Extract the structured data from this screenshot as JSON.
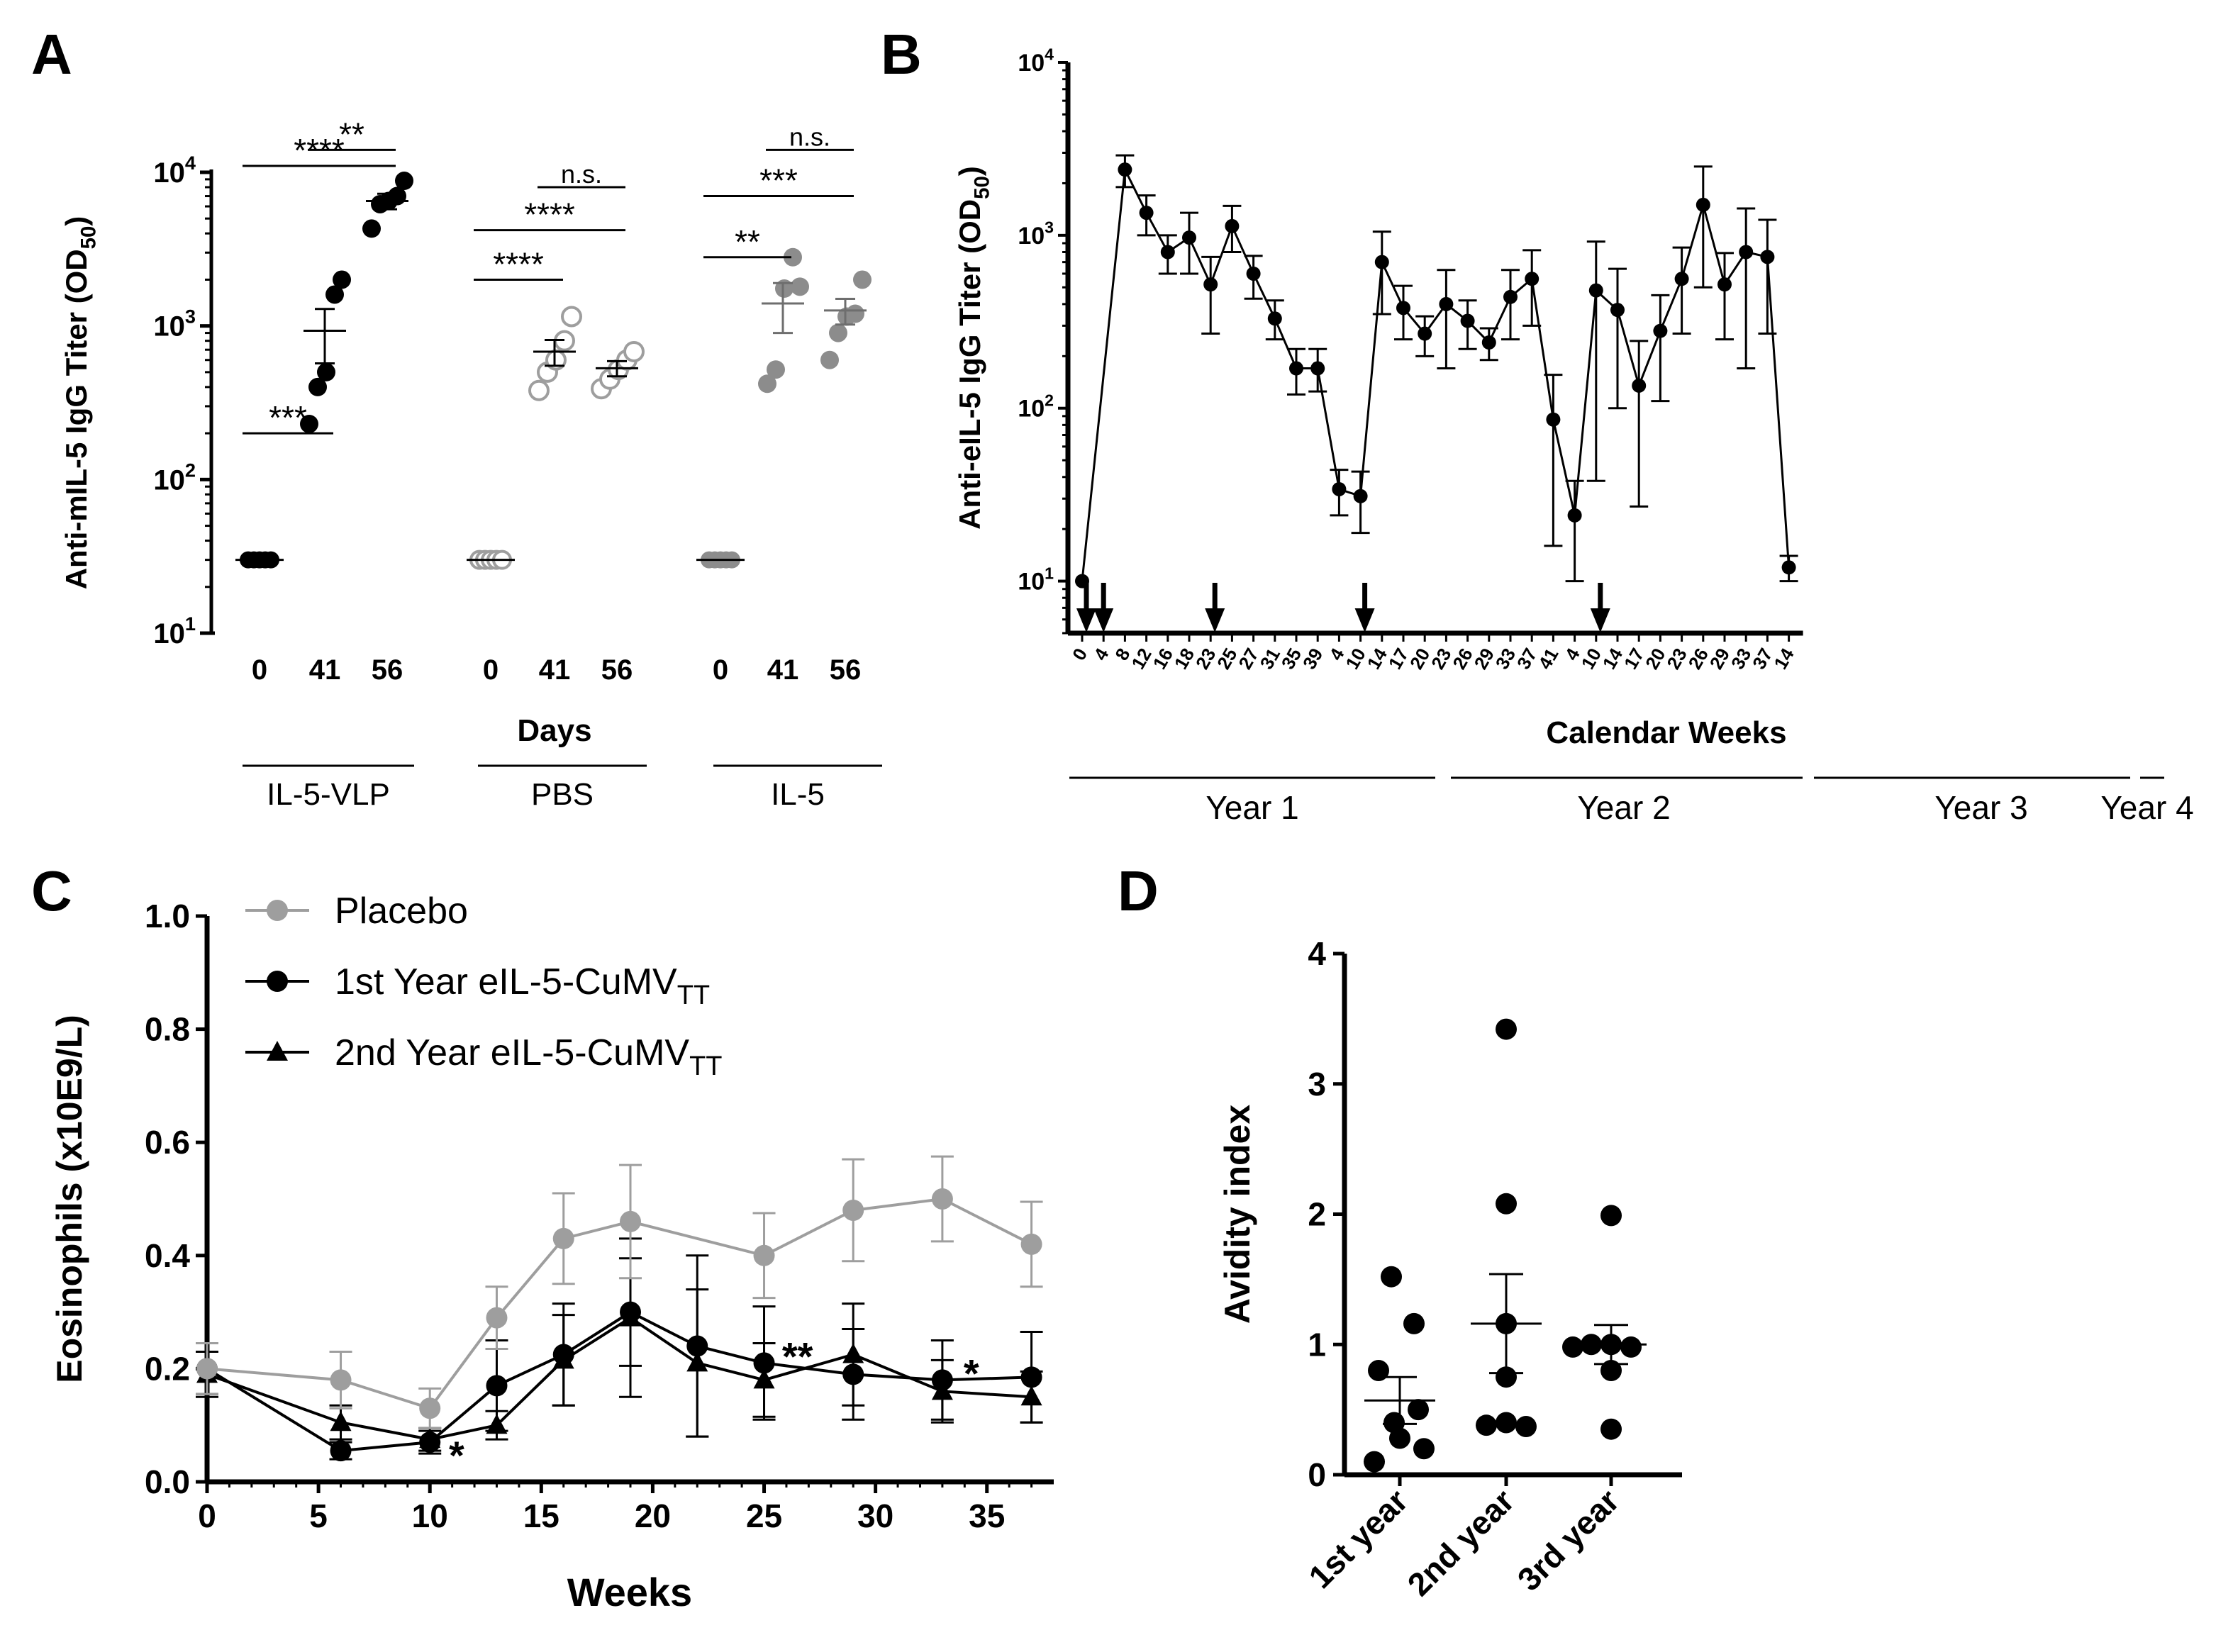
{
  "figure": {
    "panel_letters": [
      "A",
      "B",
      "C",
      "D"
    ]
  },
  "chart_data": [
    {
      "panel": "A",
      "type": "scatter",
      "y_scale": "log",
      "ylim": [
        10,
        10000
      ],
      "ylabel": "Anti-mIL-5 IgG Titer (OD50)",
      "ylabel_main": "Anti-mIL-5 IgG Titer (OD",
      "ylabel_sub": "50",
      "ylabel_end": ")",
      "yticks": [
        {
          "value": 10,
          "base": "10",
          "exp": "1"
        },
        {
          "value": 100,
          "base": "10",
          "exp": "2"
        },
        {
          "value": 1000,
          "base": "10",
          "exp": "3"
        },
        {
          "value": 10000,
          "base": "10",
          "exp": "4"
        }
      ],
      "xlabel": "Days",
      "groups": [
        {
          "name": "IL-5-VLP",
          "marker": "filled",
          "color": "#000000",
          "days": [
            {
              "day": "0",
              "points": [
                30,
                30,
                30,
                30,
                30
              ],
              "mean": 30,
              "sem": 0
            },
            {
              "day": "41",
              "points": [
                230,
                400,
                500,
                1600,
                2000
              ],
              "mean": 930,
              "sem": 360
            },
            {
              "day": "56",
              "points": [
                4300,
                6200,
                6500,
                7000,
                8800
              ],
              "mean": 6500,
              "sem": 750
            }
          ]
        },
        {
          "name": "PBS",
          "marker": "open",
          "color": "#9e9e9e",
          "days": [
            {
              "day": "0",
              "points": [
                30,
                30,
                30,
                30,
                30
              ],
              "mean": 30,
              "sem": 0
            },
            {
              "day": "41",
              "points": [
                380,
                500,
                600,
                800,
                1150
              ],
              "mean": 680,
              "sem": 130
            },
            {
              "day": "56",
              "points": [
                390,
                450,
                520,
                600,
                680
              ],
              "mean": 530,
              "sem": 60
            }
          ]
        },
        {
          "name": "IL-5",
          "marker": "filled",
          "color": "#8c8c8c",
          "days": [
            {
              "day": "0",
              "points": [
                30,
                30,
                30,
                30,
                30
              ],
              "mean": 30,
              "sem": 0
            },
            {
              "day": "41",
              "points": [
                420,
                520,
                1750,
                2800,
                1800
              ],
              "mean": 1400,
              "sem": 500
            },
            {
              "day": "56",
              "points": [
                600,
                900,
                1150,
                1200,
                2000
              ],
              "mean": 1260,
              "sem": 240
            }
          ]
        }
      ],
      "significance": [
        {
          "group": 0,
          "from": 0,
          "to": 1,
          "label": "***",
          "level": 200
        },
        {
          "group": 0,
          "from": 0,
          "to": 2,
          "label": "****",
          "level": 11000
        },
        {
          "group": 0,
          "from": 1,
          "to": 2,
          "label": "**",
          "level": 14000
        },
        {
          "group": 1,
          "from": 0,
          "to": 1,
          "label": "****",
          "level": 2000
        },
        {
          "group": 1,
          "from": 0,
          "to": 2,
          "label": "****",
          "level": 4200
        },
        {
          "group": 1,
          "from": 1,
          "to": 2,
          "label": "n.s.",
          "level": 8000
        },
        {
          "group": 2,
          "from": 0,
          "to": 1,
          "label": "**",
          "level": 2800
        },
        {
          "group": 2,
          "from": 0,
          "to": 2,
          "label": "***",
          "level": 7000
        },
        {
          "group": 2,
          "from": 1,
          "to": 2,
          "label": "n.s.",
          "level": 14000
        }
      ]
    },
    {
      "panel": "B",
      "type": "line",
      "y_scale": "log",
      "ylim": [
        5,
        10000
      ],
      "ylabel": "Anti-eIL-5 IgG Titer (OD50)",
      "ylabel_main": "Anti-eIL-5 IgG Titer (OD",
      "ylabel_sub": "50",
      "ylabel_end": ")",
      "yticks": [
        {
          "value": 10,
          "base": "10",
          "exp": "1"
        },
        {
          "value": 100,
          "base": "10",
          "exp": "2"
        },
        {
          "value": 1000,
          "base": "10",
          "exp": "3"
        },
        {
          "value": 10000,
          "base": "10",
          "exp": "4"
        }
      ],
      "xlabel": "Calendar Weeks",
      "xticks": [
        "0",
        "4",
        "8",
        "12",
        "16",
        "18",
        "23",
        "25",
        "27",
        "31",
        "35",
        "39",
        "4",
        "10",
        "14",
        "17",
        "20",
        "23",
        "26",
        "29",
        "33",
        "37",
        "41",
        "4",
        "10",
        "14",
        "17",
        "20",
        "23",
        "26",
        "29",
        "33",
        "37",
        "14"
      ],
      "points": [
        {
          "i": 0,
          "y": 10
        },
        {
          "i": 2,
          "y": 2400,
          "lo": 1900,
          "hi": 2900
        },
        {
          "i": 3,
          "y": 1350,
          "lo": 1000,
          "hi": 1700
        },
        {
          "i": 4,
          "y": 800,
          "lo": 600,
          "hi": 1000
        },
        {
          "i": 5,
          "y": 970,
          "lo": 600,
          "hi": 1350
        },
        {
          "i": 6,
          "y": 520,
          "lo": 270,
          "hi": 750
        },
        {
          "i": 7,
          "y": 1130,
          "lo": 800,
          "hi": 1480
        },
        {
          "i": 8,
          "y": 600,
          "lo": 430,
          "hi": 760
        },
        {
          "i": 9,
          "y": 330,
          "lo": 250,
          "hi": 420
        },
        {
          "i": 10,
          "y": 170,
          "lo": 120,
          "hi": 220
        },
        {
          "i": 11,
          "y": 170,
          "lo": 125,
          "hi": 220
        },
        {
          "i": 12,
          "y": 34,
          "lo": 24,
          "hi": 44
        },
        {
          "i": 13,
          "y": 31,
          "lo": 19,
          "hi": 43
        },
        {
          "i": 14,
          "y": 700,
          "lo": 350,
          "hi": 1050
        },
        {
          "i": 15,
          "y": 380,
          "lo": 250,
          "hi": 510
        },
        {
          "i": 16,
          "y": 270,
          "lo": 200,
          "hi": 340
        },
        {
          "i": 17,
          "y": 400,
          "lo": 170,
          "hi": 630
        },
        {
          "i": 18,
          "y": 320,
          "lo": 220,
          "hi": 420
        },
        {
          "i": 19,
          "y": 240,
          "lo": 190,
          "hi": 290
        },
        {
          "i": 20,
          "y": 440,
          "lo": 250,
          "hi": 630
        },
        {
          "i": 21,
          "y": 560,
          "lo": 300,
          "hi": 820
        },
        {
          "i": 22,
          "y": 86,
          "lo": 16,
          "hi": 156
        },
        {
          "i": 23,
          "y": 24,
          "lo": 10,
          "hi": 38
        },
        {
          "i": 24,
          "y": 480,
          "lo": 38,
          "hi": 920
        },
        {
          "i": 25,
          "y": 370,
          "lo": 100,
          "hi": 640
        },
        {
          "i": 26,
          "y": 135,
          "lo": 27,
          "hi": 245
        },
        {
          "i": 27,
          "y": 280,
          "lo": 110,
          "hi": 450
        },
        {
          "i": 28,
          "y": 560,
          "lo": 270,
          "hi": 850
        },
        {
          "i": 29,
          "y": 1500,
          "lo": 500,
          "hi": 2500
        },
        {
          "i": 30,
          "y": 520,
          "lo": 250,
          "hi": 790
        },
        {
          "i": 31,
          "y": 800,
          "lo": 170,
          "hi": 1430
        },
        {
          "i": 32,
          "y": 750,
          "lo": 270,
          "hi": 1230
        },
        {
          "i": 33,
          "y": 12,
          "lo": 10,
          "hi": 14
        }
      ],
      "vaccination_arrows_at_tick_index": [
        0,
        1,
        6,
        13,
        24
      ],
      "year_labels": [
        "Year 1",
        "Year 2",
        "Year 3",
        "Year 4"
      ]
    },
    {
      "panel": "C",
      "type": "line",
      "xlabel": "Weeks",
      "ylabel": "Eosinophils (x10E9/L)",
      "xlim": [
        0,
        38
      ],
      "ylim": [
        0,
        1.0
      ],
      "xticks": [
        0,
        5,
        10,
        15,
        20,
        25,
        30,
        35
      ],
      "yticks": [
        "0.0",
        "0.2",
        "0.4",
        "0.6",
        "0.8",
        "1.0"
      ],
      "series": [
        {
          "name": "Placebo",
          "name_sub": "",
          "marker": "circle",
          "color": "#9e9e9e",
          "x": [
            0,
            6,
            10,
            13,
            16,
            19,
            25,
            29,
            33,
            37
          ],
          "y": [
            0.2,
            0.18,
            0.13,
            0.29,
            0.43,
            0.46,
            0.4,
            0.48,
            0.5,
            0.42
          ],
          "err": [
            0.045,
            0.05,
            0.035,
            0.055,
            0.08,
            0.1,
            0.075,
            0.09,
            0.075,
            0.075
          ]
        },
        {
          "name": "1st Year eIL-5-CuMV",
          "name_sub": "TT",
          "marker": "circle",
          "color": "#000000",
          "x": [
            0,
            6,
            10,
            13,
            16,
            19,
            22,
            25,
            29,
            33,
            37
          ],
          "y": [
            0.2,
            0.055,
            0.07,
            0.17,
            0.225,
            0.3,
            0.24,
            0.21,
            0.19,
            0.18,
            0.185
          ],
          "err": [
            0.045,
            0.015,
            0.02,
            0.08,
            0.09,
            0.095,
            0.16,
            0.1,
            0.08,
            0.07,
            0.08
          ]
        },
        {
          "name": "2nd Year eIL-5-CuMV",
          "name_sub": "TT",
          "marker": "triangle",
          "color": "#000000",
          "x": [
            0,
            6,
            10,
            13,
            16,
            19,
            22,
            25,
            29,
            33,
            37
          ],
          "y": [
            0.19,
            0.105,
            0.075,
            0.1,
            0.215,
            0.29,
            0.21,
            0.18,
            0.225,
            0.16,
            0.15
          ],
          "err": [
            0.04,
            0.03,
            0.02,
            0.025,
            0.08,
            0.14,
            0.13,
            0.065,
            0.09,
            0.055,
            0.045
          ]
        }
      ],
      "annotations": [
        {
          "text": "*",
          "x": 11.2,
          "y": 0.045
        },
        {
          "text": "**",
          "x": 26.5,
          "y": 0.22
        },
        {
          "text": "*",
          "x": 34.3,
          "y": 0.19
        }
      ]
    },
    {
      "panel": "D",
      "type": "scatter",
      "ylabel": "Avidity index",
      "ylim": [
        0,
        4
      ],
      "yticks": [
        "0",
        "1",
        "2",
        "3",
        "4"
      ],
      "categories": [
        "1st year",
        "2nd year",
        "3rd year"
      ],
      "series": [
        {
          "name": "1st year",
          "points": [
            1.52,
            1.16,
            0.8,
            0.5,
            0.4,
            0.28,
            0.2,
            0.1
          ],
          "mean": 0.57,
          "sem": 0.18
        },
        {
          "name": "2nd year",
          "points": [
            3.42,
            2.08,
            1.16,
            0.75,
            0.4,
            0.38,
            0.37
          ],
          "mean": 1.16,
          "sem": 0.38
        },
        {
          "name": "3rd year",
          "points": [
            1.99,
            1.0,
            1.0,
            0.98,
            0.98,
            0.8,
            0.35
          ],
          "mean": 1.0,
          "sem": 0.15
        }
      ]
    }
  ]
}
